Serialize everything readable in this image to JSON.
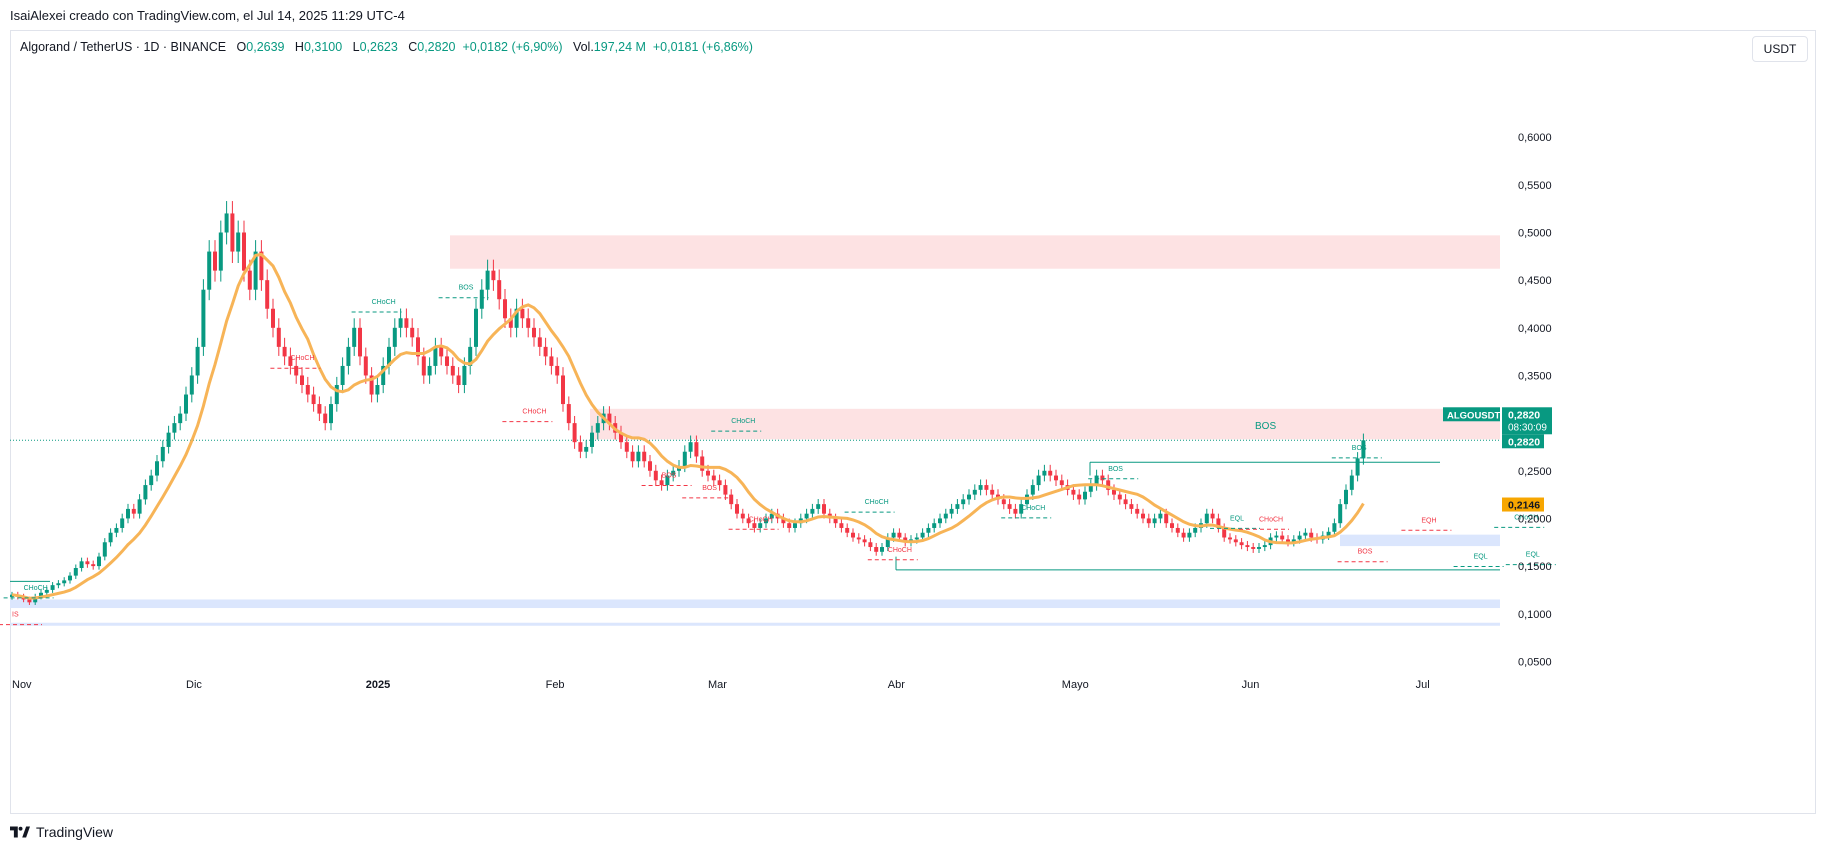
{
  "caption": "IsaiAlexei creado con TradingView.com, el Jul 14, 2025 11:29 UTC-4",
  "legend": {
    "symbol": "Algorand / TetherUS · 1D · BINANCE",
    "open_label": "O",
    "open": "0,2639",
    "high_label": "H",
    "high": "0,3100",
    "low_label": "L",
    "low": "0,2623",
    "close_label": "C",
    "close": "0,2820",
    "change": "+0,0182 (+6,90%)",
    "vol_label": "Vol.",
    "vol": "197,24 M",
    "vol_change": "+0,0181 (+6,86%)"
  },
  "currency_button": "USDT",
  "branding": "TradingView",
  "colors": {
    "up": "#089981",
    "down": "#f23645",
    "ma": "#f7b457",
    "supply_zone": "#fde2e3",
    "demand_zone": "#dbe6fd",
    "bos_line": "#089981",
    "choch_red": "#f23645"
  },
  "chart_data": {
    "type": "candlestick",
    "symbol": "ALGOUSDT",
    "ylim": [
      0.02,
      0.66
    ],
    "y_ticks": [
      "0,6000",
      "0,5500",
      "0,5000",
      "0,4500",
      "0,4000",
      "0,3500",
      "0,3000",
      "0,2500",
      "0,2000",
      "0,1500",
      "0,1000",
      "0,0500"
    ],
    "y_tick_values": [
      0.6,
      0.55,
      0.5,
      0.45,
      0.4,
      0.35,
      0.3,
      0.25,
      0.2,
      0.15,
      0.1,
      0.05
    ],
    "x_labels": [
      "Nov",
      "Dic",
      "2025",
      "Feb",
      "Mar",
      "Abr",
      "Mayo",
      "Jun",
      "Jul"
    ],
    "x_label_days": [
      0,
      30,
      61,
      92,
      120,
      151,
      181,
      212,
      242
    ],
    "current_price": {
      "symbol": "ALGOUSDT",
      "price": "0,2820",
      "countdown": "08:30:09",
      "value": 0.282
    },
    "ma_label": {
      "value": 0.2146,
      "text": "0,2146"
    },
    "last_price_line": 0.282,
    "closes": [
      0.12,
      0.118,
      0.115,
      0.112,
      0.118,
      0.122,
      0.125,
      0.13,
      0.132,
      0.135,
      0.14,
      0.148,
      0.155,
      0.152,
      0.15,
      0.16,
      0.175,
      0.185,
      0.19,
      0.2,
      0.21,
      0.205,
      0.22,
      0.235,
      0.245,
      0.26,
      0.275,
      0.29,
      0.3,
      0.31,
      0.33,
      0.35,
      0.38,
      0.44,
      0.48,
      0.46,
      0.5,
      0.52,
      0.48,
      0.5,
      0.46,
      0.44,
      0.48,
      0.45,
      0.42,
      0.4,
      0.38,
      0.37,
      0.36,
      0.35,
      0.34,
      0.33,
      0.32,
      0.31,
      0.3,
      0.32,
      0.34,
      0.36,
      0.38,
      0.4,
      0.37,
      0.35,
      0.33,
      0.34,
      0.36,
      0.38,
      0.4,
      0.41,
      0.4,
      0.39,
      0.37,
      0.35,
      0.36,
      0.38,
      0.37,
      0.36,
      0.35,
      0.34,
      0.36,
      0.38,
      0.42,
      0.44,
      0.46,
      0.45,
      0.43,
      0.41,
      0.4,
      0.42,
      0.41,
      0.4,
      0.39,
      0.38,
      0.37,
      0.36,
      0.35,
      0.32,
      0.3,
      0.28,
      0.27,
      0.275,
      0.29,
      0.3,
      0.31,
      0.3,
      0.29,
      0.28,
      0.27,
      0.26,
      0.27,
      0.26,
      0.25,
      0.24,
      0.235,
      0.245,
      0.25,
      0.255,
      0.27,
      0.28,
      0.265,
      0.25,
      0.245,
      0.24,
      0.235,
      0.225,
      0.215,
      0.205,
      0.2,
      0.195,
      0.19,
      0.195,
      0.2,
      0.205,
      0.2,
      0.195,
      0.19,
      0.195,
      0.2,
      0.205,
      0.21,
      0.215,
      0.205,
      0.2,
      0.195,
      0.19,
      0.185,
      0.18,
      0.178,
      0.175,
      0.17,
      0.165,
      0.17,
      0.18,
      0.185,
      0.18,
      0.175,
      0.178,
      0.18,
      0.185,
      0.19,
      0.195,
      0.2,
      0.205,
      0.21,
      0.215,
      0.22,
      0.225,
      0.23,
      0.235,
      0.23,
      0.225,
      0.22,
      0.215,
      0.21,
      0.205,
      0.215,
      0.225,
      0.235,
      0.245,
      0.25,
      0.245,
      0.24,
      0.235,
      0.23,
      0.225,
      0.22,
      0.228,
      0.235,
      0.245,
      0.24,
      0.23,
      0.225,
      0.22,
      0.215,
      0.21,
      0.205,
      0.2,
      0.195,
      0.2,
      0.205,
      0.195,
      0.19,
      0.185,
      0.18,
      0.185,
      0.19,
      0.195,
      0.205,
      0.2,
      0.19,
      0.18,
      0.178,
      0.175,
      0.172,
      0.17,
      0.168,
      0.17,
      0.172,
      0.18,
      0.182,
      0.178,
      0.175,
      0.178,
      0.182,
      0.185,
      0.18,
      0.178,
      0.182,
      0.186,
      0.195,
      0.215,
      0.23,
      0.245,
      0.263,
      0.282
    ],
    "annotations": [
      {
        "text": "CHoCH",
        "kind": "bull",
        "day": 2,
        "price": 0.125
      },
      {
        "text": "CHoCH",
        "kind": "bear",
        "day": 48,
        "price": 0.366
      },
      {
        "text": "CHoCH",
        "kind": "bull",
        "day": 62,
        "price": 0.425
      },
      {
        "text": "BOS",
        "kind": "bull",
        "day": 77,
        "price": 0.44
      },
      {
        "text": "CHoCH",
        "kind": "bear",
        "day": 88,
        "price": 0.31
      },
      {
        "text": "CHoCH",
        "kind": "bull",
        "day": 124,
        "price": 0.3
      },
      {
        "text": "BOS",
        "kind": "bear",
        "day": 112,
        "price": 0.243
      },
      {
        "text": "BOS",
        "kind": "bear",
        "day": 119,
        "price": 0.23
      },
      {
        "text": "CHoCH",
        "kind": "bear",
        "day": 127,
        "price": 0.197
      },
      {
        "text": "CHoCH",
        "kind": "bull",
        "day": 147,
        "price": 0.215
      },
      {
        "text": "CHoCH",
        "kind": "bear",
        "day": 151,
        "price": 0.165
      },
      {
        "text": "CHoCH",
        "kind": "bull",
        "day": 174,
        "price": 0.209
      },
      {
        "text": "BOS",
        "kind": "bull",
        "day": 189,
        "price": 0.25
      },
      {
        "text": "BOS",
        "kind": "bull",
        "day": 231,
        "price": 0.272
      },
      {
        "text": "EQL",
        "kind": "bull",
        "day": 210,
        "price": 0.198
      },
      {
        "text": "CHoCH",
        "kind": "bear",
        "day": 215,
        "price": 0.197
      },
      {
        "text": "BOS",
        "kind": "bear",
        "day": 232,
        "price": 0.163
      },
      {
        "text": "EQH",
        "kind": "bear",
        "day": 243,
        "price": 0.196
      },
      {
        "text": "EQL",
        "kind": "bull",
        "day": 252,
        "price": 0.158
      },
      {
        "text": "CHoCH",
        "kind": "bull",
        "day": 259,
        "price": 0.199
      },
      {
        "text": "EQL",
        "kind": "bull",
        "day": 261,
        "price": 0.16
      },
      {
        "text": "IS",
        "kind": "bear",
        "day": 0,
        "price": 0.097
      }
    ]
  }
}
